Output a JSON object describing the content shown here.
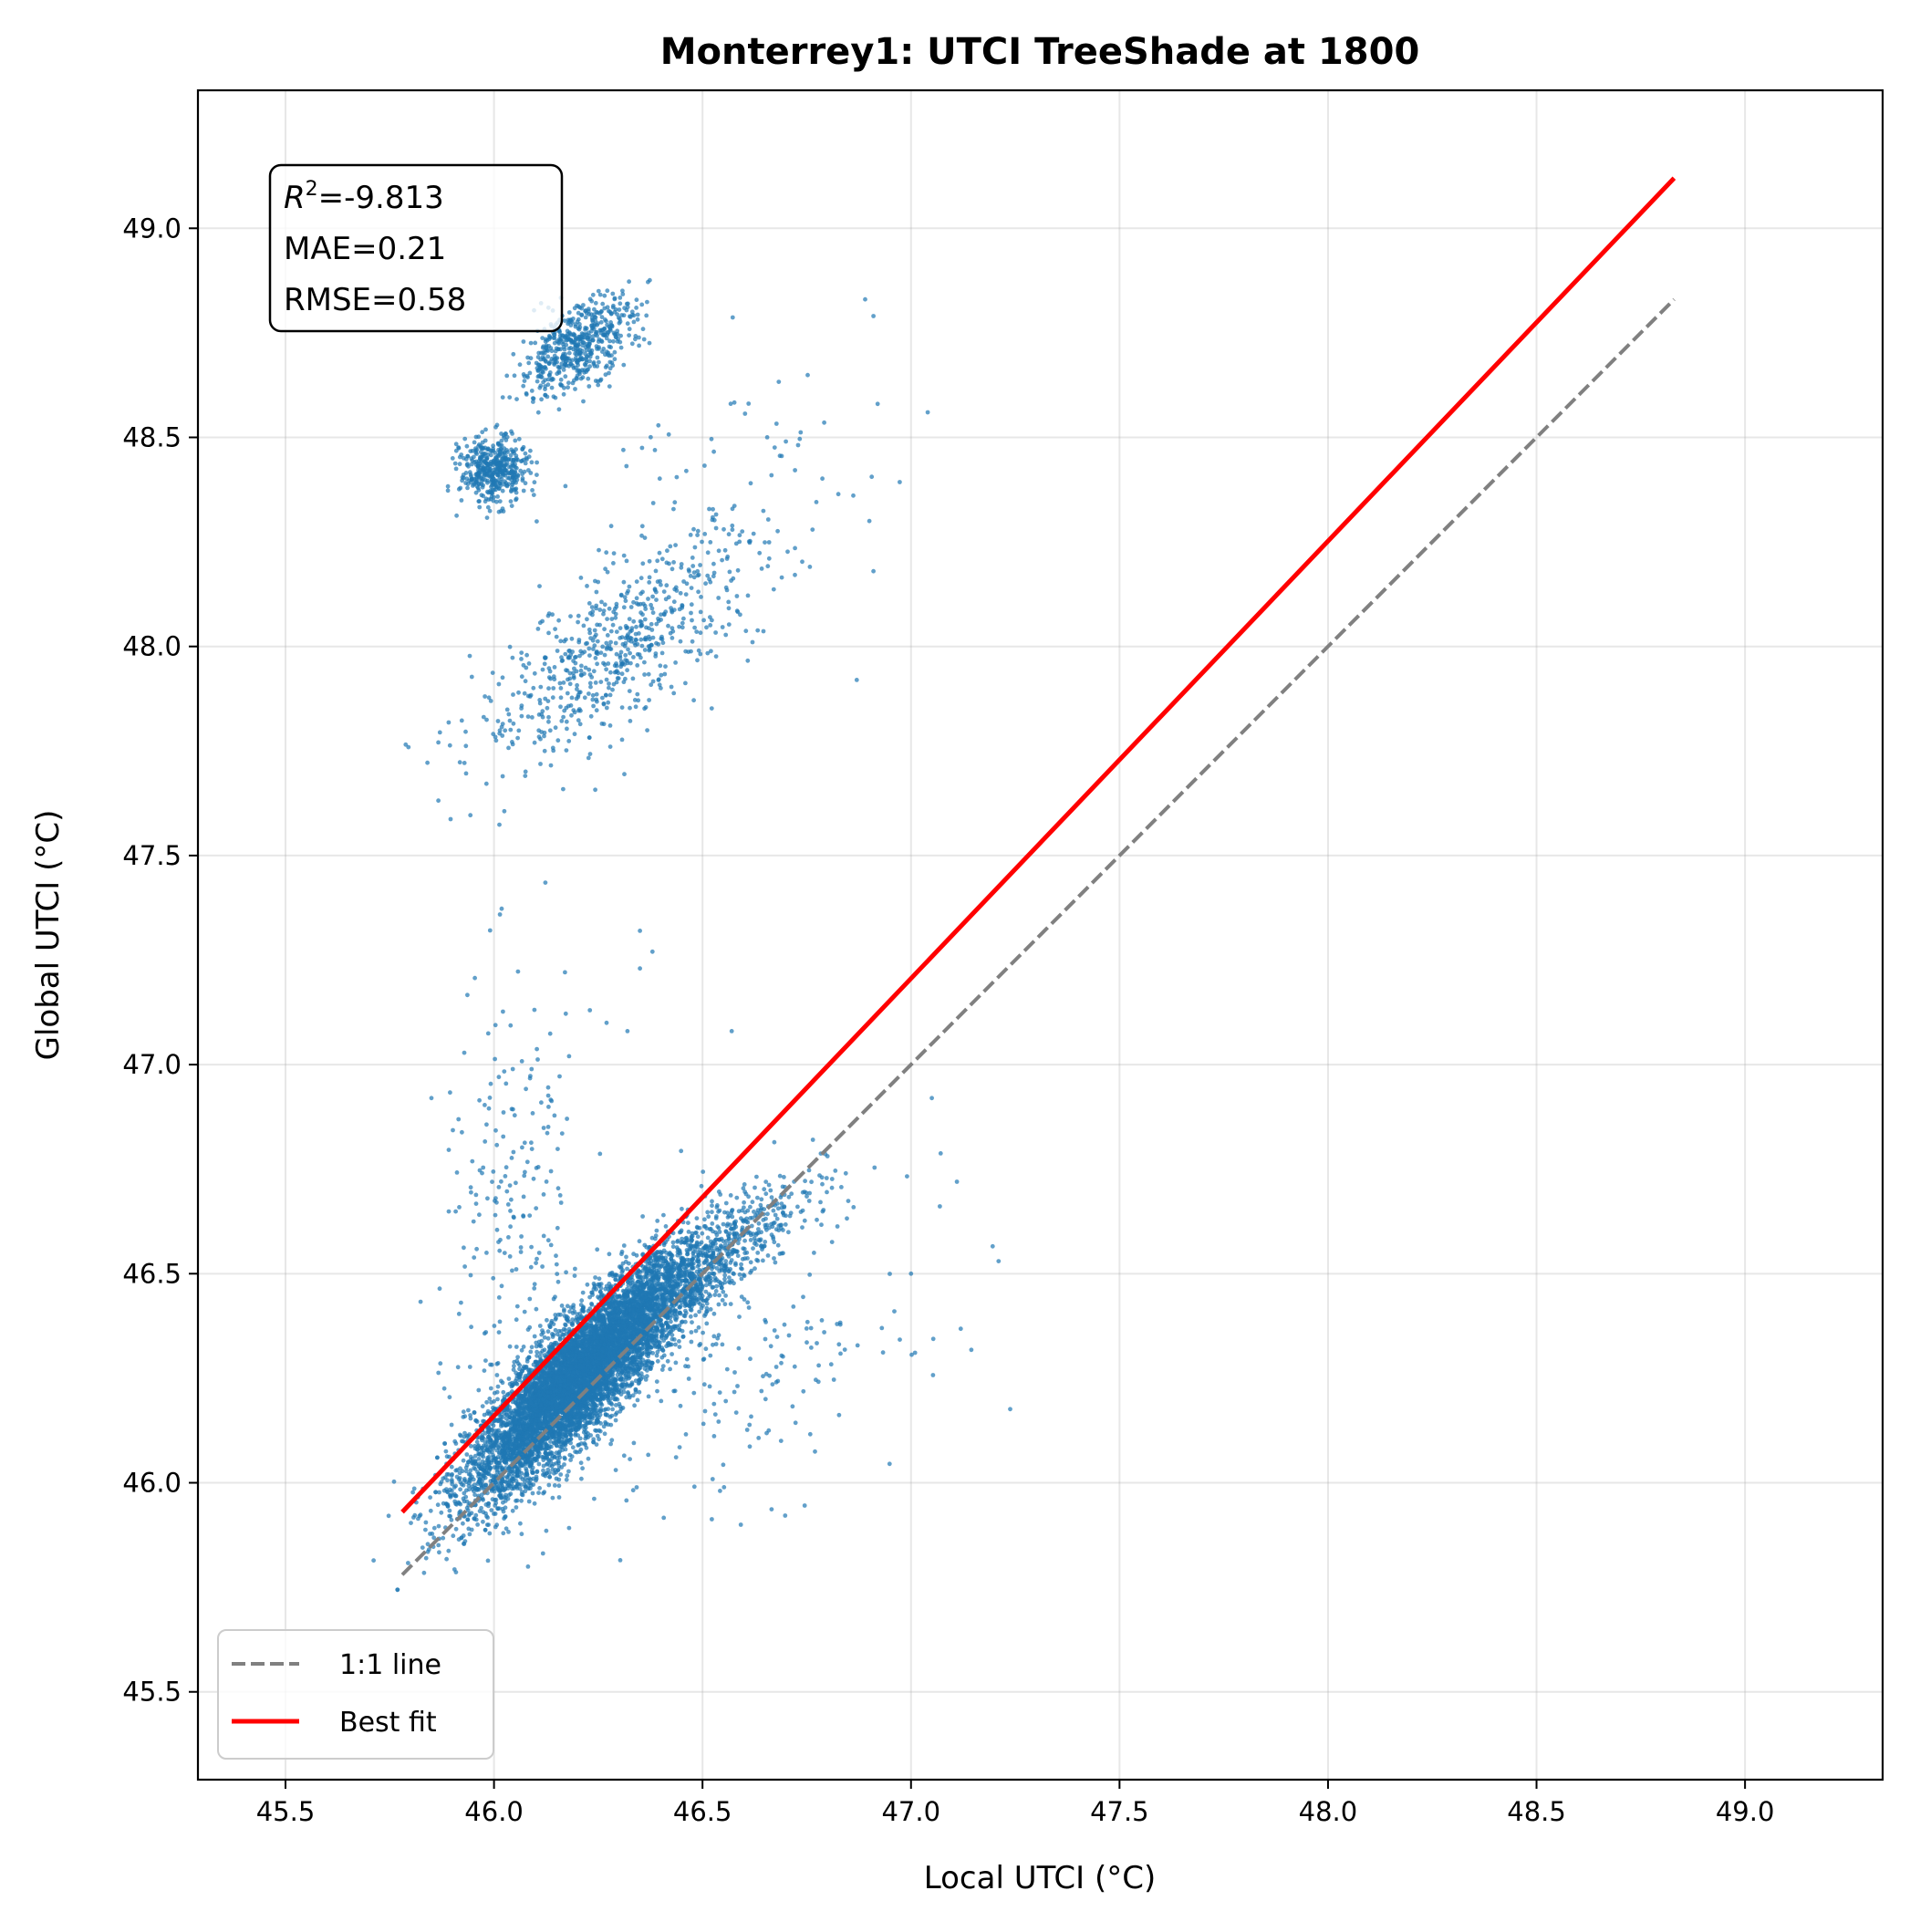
{
  "chart_data": {
    "type": "scatter",
    "title": "Monterrey1: UTCI TreeShade at 1800",
    "xlabel": "Local UTCI (°C)",
    "ylabel": "Global UTCI (°C)",
    "xlim": [
      45.29,
      49.33
    ],
    "ylim": [
      45.29,
      49.33
    ],
    "grid": true,
    "x_ticks": [
      "45.5",
      "46.0",
      "46.5",
      "47.0",
      "47.5",
      "48.0",
      "48.5",
      "49.0"
    ],
    "y_ticks": [
      "45.5",
      "46.0",
      "46.5",
      "47.0",
      "47.5",
      "48.0",
      "48.5",
      "49.0"
    ],
    "stats": {
      "r2_symbol": "R",
      "r2_exp": "2",
      "r2_value": "=-9.813",
      "mae": "MAE=0.21",
      "rmse": "RMSE=0.58"
    },
    "legend": {
      "position": "lower left",
      "entries": [
        {
          "label": "1:1 line",
          "color": "#808080",
          "style": "dashed"
        },
        {
          "label": "Best fit",
          "color": "#ff0000",
          "style": "solid"
        }
      ]
    },
    "series": [
      {
        "kind": "scatter",
        "color": "#1f77b4",
        "clusters": [
          {
            "x": 46.2,
            "y": 46.25,
            "sx": 0.13,
            "sy": 0.14,
            "corr": 0.85,
            "n": 7000
          },
          {
            "x": 46.45,
            "y": 46.48,
            "sx": 0.14,
            "sy": 0.12,
            "corr": 0.85,
            "n": 1000
          },
          {
            "x": 46.05,
            "y": 46.6,
            "sx": 0.09,
            "sy": 0.3,
            "corr": 0.1,
            "n": 220
          },
          {
            "x": 46.6,
            "y": 46.3,
            "sx": 0.2,
            "sy": 0.18,
            "corr": 0.3,
            "n": 180
          },
          {
            "x": 46.0,
            "y": 48.42,
            "sx": 0.04,
            "sy": 0.04,
            "corr": 0.0,
            "n": 450
          },
          {
            "x": 46.2,
            "y": 48.72,
            "sx": 0.07,
            "sy": 0.06,
            "corr": 0.6,
            "n": 550
          },
          {
            "x": 46.3,
            "y": 48.0,
            "sx": 0.17,
            "sy": 0.14,
            "corr": 0.75,
            "n": 650
          },
          {
            "x": 46.55,
            "y": 48.35,
            "sx": 0.2,
            "sy": 0.22,
            "corr": 0.0,
            "n": 70
          }
        ],
        "outliers": [
          [
            46.35,
            47.32
          ],
          [
            46.38,
            47.27
          ],
          [
            46.35,
            47.23
          ],
          [
            46.23,
            47.13
          ],
          [
            46.27,
            47.1
          ],
          [
            46.32,
            47.08
          ],
          [
            46.57,
            47.08
          ],
          [
            47.05,
            46.92
          ],
          [
            47.11,
            46.72
          ],
          [
            47.21,
            46.53
          ],
          [
            47.0,
            46.5
          ],
          [
            46.96,
            46.41
          ],
          [
            46.93,
            46.37
          ],
          [
            45.85,
            46.92
          ],
          [
            46.18,
            47.02
          ],
          [
            47.04,
            48.56
          ],
          [
            46.92,
            48.58
          ],
          [
            46.89,
            48.83
          ],
          [
            46.91,
            48.79
          ],
          [
            46.91,
            48.18
          ],
          [
            46.9,
            48.3
          ],
          [
            46.87,
            47.92
          ]
        ]
      },
      {
        "name": "1:1 line",
        "kind": "line",
        "style": "dashed",
        "color": "#808080",
        "x": [
          45.78,
          48.83
        ],
        "y": [
          45.78,
          48.83
        ]
      },
      {
        "name": "Best fit",
        "kind": "line",
        "style": "solid",
        "color": "#ff0000",
        "x": [
          45.78,
          48.83
        ],
        "y": [
          45.93,
          49.12
        ]
      }
    ]
  }
}
